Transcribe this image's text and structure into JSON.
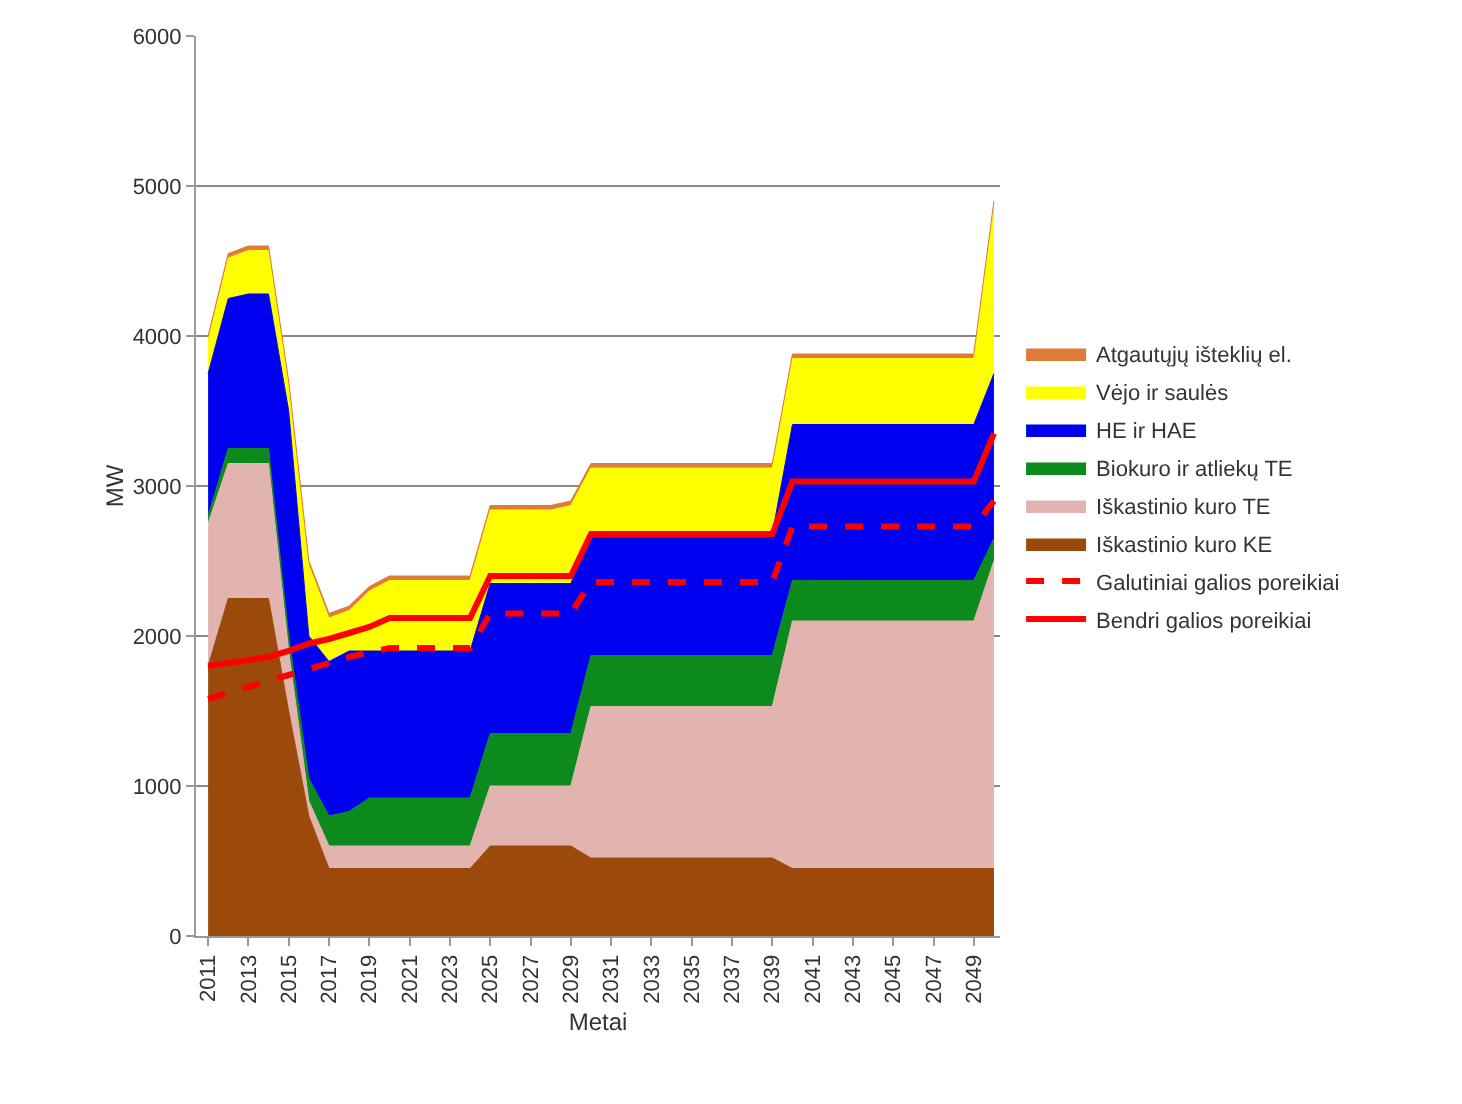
{
  "chart_data": {
    "type": "area",
    "stacked": true,
    "xlabel": "Metai",
    "ylabel": "MW",
    "categories": [
      "2011",
      null,
      "2013",
      null,
      "2015",
      null,
      "2017",
      null,
      "2019",
      null,
      "2021",
      null,
      "2023",
      null,
      "2025",
      null,
      "2027",
      null,
      "2029",
      null,
      "2031",
      null,
      "2033",
      null,
      "2035",
      null,
      "2037",
      null,
      "2039",
      null,
      "2041",
      null,
      "2043",
      null,
      "2045",
      null,
      "2047",
      null,
      "2049",
      null
    ],
    "ylim": [
      0,
      6000
    ],
    "yticks": [
      0,
      1000,
      2000,
      3000,
      4000,
      5000,
      6000
    ],
    "grid": "y",
    "legend": "right",
    "series": [
      {
        "name": "Iškastinio kuro KE",
        "color": "#9c4a0c",
        "values": [
          1800,
          2250,
          2250,
          2250,
          1500,
          800,
          450,
          450,
          450,
          450,
          450,
          450,
          450,
          450,
          600,
          600,
          600,
          600,
          600,
          520,
          520,
          520,
          520,
          520,
          520,
          520,
          520,
          520,
          520,
          450,
          450,
          450,
          450,
          450,
          450,
          450,
          450,
          450,
          450,
          450
        ]
      },
      {
        "name": "Iškastinio kuro TE",
        "color": "#e2b4b0",
        "values": [
          950,
          900,
          900,
          900,
          400,
          100,
          150,
          150,
          150,
          150,
          150,
          150,
          150,
          150,
          400,
          400,
          400,
          400,
          400,
          1010,
          1010,
          1010,
          1010,
          1010,
          1010,
          1010,
          1010,
          1010,
          1010,
          1650,
          1650,
          1650,
          1650,
          1650,
          1650,
          1650,
          1650,
          1650,
          1650,
          2050
        ]
      },
      {
        "name": "Biokuro ir atliekų TE",
        "color": "#0c8a1e",
        "values": [
          50,
          100,
          100,
          100,
          100,
          150,
          200,
          230,
          320,
          320,
          320,
          320,
          320,
          320,
          350,
          350,
          350,
          350,
          350,
          340,
          340,
          340,
          340,
          340,
          340,
          340,
          340,
          340,
          340,
          270,
          270,
          270,
          270,
          270,
          270,
          270,
          270,
          270,
          270,
          150
        ]
      },
      {
        "name": "HE ir HAE",
        "color": "#0000f0",
        "values": [
          950,
          1000,
          1030,
          1030,
          1500,
          950,
          1030,
          1070,
          980,
          980,
          980,
          980,
          980,
          980,
          1000,
          1000,
          1000,
          1000,
          1000,
          810,
          810,
          810,
          810,
          810,
          810,
          810,
          810,
          810,
          810,
          1040,
          1040,
          1040,
          1040,
          1040,
          1040,
          1040,
          1040,
          1040,
          1040,
          1100
        ]
      },
      {
        "name": "Vėjo ir saulės",
        "color": "#ffff00",
        "values": [
          220,
          270,
          290,
          290,
          170,
          470,
          290,
          270,
          400,
          470,
          470,
          470,
          470,
          470,
          490,
          490,
          490,
          490,
          520,
          440,
          440,
          440,
          440,
          440,
          440,
          440,
          440,
          440,
          440,
          440,
          440,
          440,
          440,
          440,
          440,
          440,
          440,
          440,
          440,
          1120
        ]
      },
      {
        "name": "Atgautųjų išteklių el.",
        "color": "#e07b39",
        "values": [
          30,
          30,
          30,
          30,
          30,
          30,
          30,
          30,
          30,
          30,
          30,
          30,
          30,
          30,
          30,
          30,
          30,
          30,
          30,
          30,
          30,
          30,
          30,
          30,
          30,
          30,
          30,
          30,
          30,
          30,
          30,
          30,
          30,
          30,
          30,
          30,
          30,
          30,
          30,
          30
        ]
      },
      {
        "name": "Galutiniai galios poreikiai",
        "type": "line",
        "line_style": "dashed",
        "color": "#ff0000",
        "values": [
          1580,
          1620,
          1660,
          1700,
          1740,
          1780,
          1820,
          1860,
          1890,
          1920,
          1920,
          1920,
          1920,
          1920,
          2150,
          2150,
          2150,
          2150,
          2150,
          2360,
          2360,
          2360,
          2360,
          2360,
          2360,
          2360,
          2360,
          2360,
          2360,
          2730,
          2730,
          2730,
          2730,
          2730,
          2730,
          2730,
          2730,
          2730,
          2730,
          2900
        ]
      },
      {
        "name": "Bendri galios poreikiai",
        "type": "line",
        "line_style": "solid",
        "color": "#ff0000",
        "values": [
          1800,
          1820,
          1840,
          1860,
          1900,
          1950,
          1980,
          2020,
          2060,
          2120,
          2120,
          2120,
          2120,
          2120,
          2400,
          2400,
          2400,
          2400,
          2400,
          2680,
          2680,
          2680,
          2680,
          2680,
          2680,
          2680,
          2680,
          2680,
          2680,
          3030,
          3030,
          3030,
          3030,
          3030,
          3030,
          3030,
          3030,
          3030,
          3030,
          3350
        ]
      }
    ]
  }
}
